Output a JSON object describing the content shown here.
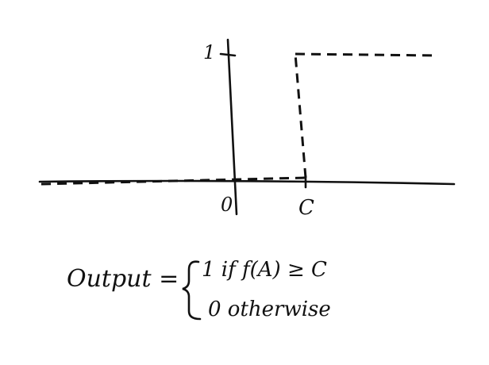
{
  "labels": {
    "y_one": "1",
    "origin": "0",
    "threshold": "C"
  },
  "formula": {
    "lhs": "Output =",
    "case_true": "1 if f(A) ≥ C",
    "case_false": "0 otherwise"
  }
}
